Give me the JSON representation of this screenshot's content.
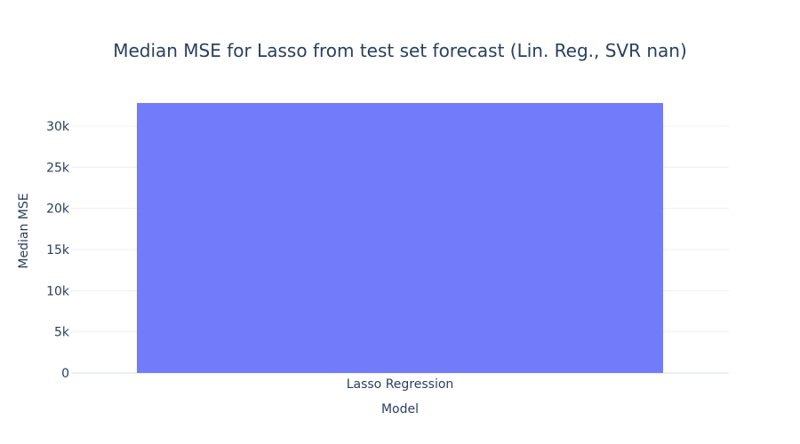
{
  "chart_data": {
    "type": "bar",
    "title": "Median MSE for Lasso from test set forecast (Lin. Reg., SVR nan)",
    "xlabel": "Model",
    "ylabel": "Median MSE",
    "categories": [
      "Lasso Regression"
    ],
    "values": [
      32800
    ],
    "ylim": [
      0,
      32800
    ],
    "yticks": [
      0,
      5000,
      10000,
      15000,
      20000,
      25000,
      30000
    ],
    "ytick_labels": [
      "0",
      "5k",
      "10k",
      "15k",
      "20k",
      "25k",
      "30k"
    ],
    "grid": true,
    "legend": "none",
    "bar_color": "#636efa",
    "grid_color": "#ebf0f8",
    "text_color": "#2a3f5f"
  }
}
